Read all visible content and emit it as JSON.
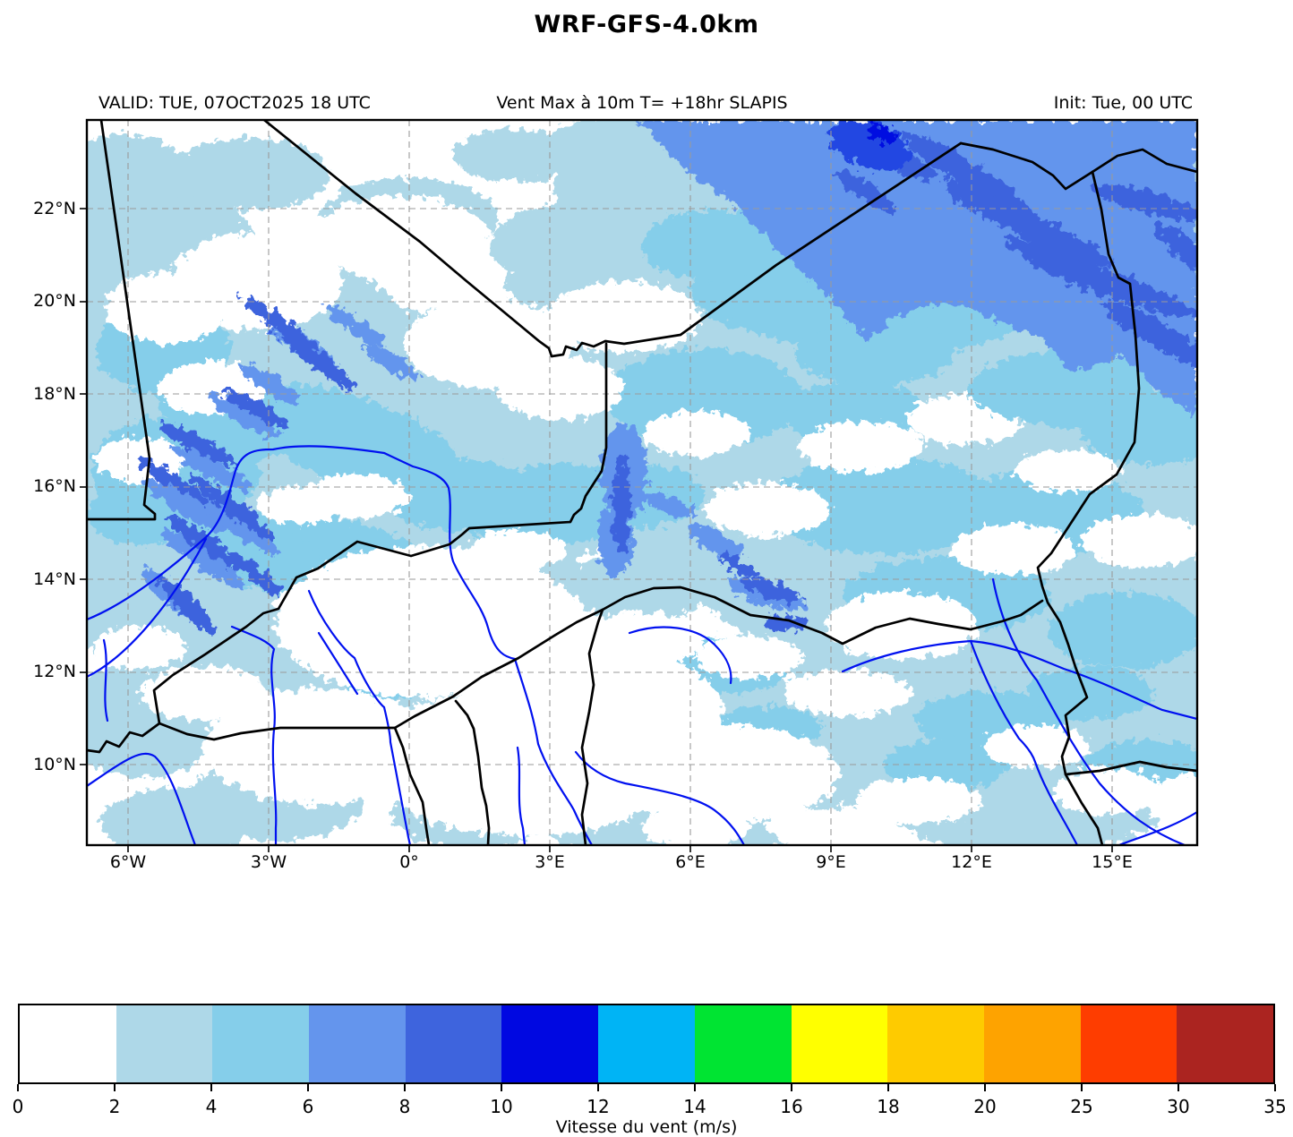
{
  "title": "WRF-GFS-4.0km",
  "header": {
    "valid": "VALID: TUE, 07OCT2025 18 UTC",
    "variable": "Vent Max à 10m T= +18hr SLAPIS",
    "init": "Init: Tue, 00 UTC"
  },
  "map": {
    "lat_ticks": [
      "22°N",
      "20°N",
      "18°N",
      "16°N",
      "14°N",
      "12°N",
      "10°N"
    ],
    "lon_ticks": [
      "6°W",
      "3°W",
      "0°",
      "3°E",
      "6°E",
      "9°E",
      "12°E",
      "15°E"
    ]
  },
  "colorbar": {
    "label": "Vitesse du vent (m/s)",
    "tick_labels": [
      "0",
      "2",
      "4",
      "6",
      "8",
      "10",
      "12",
      "14",
      "16",
      "18",
      "20",
      "25",
      "30",
      "35"
    ],
    "colors": [
      "#ffffff",
      "#aed8e8",
      "#85ceea",
      "#6495ed",
      "#3e64dd",
      "#0008e1",
      "#00b4f5",
      "#00e432",
      "#ffff00",
      "#fecb00",
      "#fea300",
      "#fe3d00",
      "#ab2420"
    ]
  },
  "chart_data": {
    "type": "heatmap",
    "title": "WRF-GFS-4.0km",
    "variable": "Vent Max à 10m (maximum 10 m wind speed)",
    "units": "m/s",
    "valid_time": "TUE, 07OCT2025 18 UTC",
    "init_time": "Tue, 00 UTC",
    "lead_time": "+18hr",
    "domain_label": "SLAPIS (Sahel / West Africa)",
    "lon_range_deg": [
      -7.0,
      16.9
    ],
    "lat_range_deg": [
      8.3,
      23.9
    ],
    "contour_levels_ms": [
      0,
      2,
      4,
      6,
      8,
      10,
      12,
      14,
      16,
      18,
      20,
      25,
      30,
      35
    ],
    "palette_hex": [
      "#ffffff",
      "#aed8e8",
      "#85ceea",
      "#6495ed",
      "#3e64dd",
      "#0008e1",
      "#00b4f5",
      "#00e432",
      "#ffff00",
      "#fecb00",
      "#fea300",
      "#fe3d00",
      "#ab2420"
    ],
    "legend_position": "bottom",
    "grid": "dashed graticule every 3° lon / 2° lat",
    "overlays": [
      "country borders (black)",
      "rivers (blue)"
    ],
    "features": [
      {
        "area": "northeast corner (S Libya / NE Niger, ~21-24N 8-17E)",
        "value_ms": "6-10, local max 10-12 near 23.5N 10.5E"
      },
      {
        "area": "NW Mali / Mauritania streaks (~16-20N 3-6W)",
        "value_ms": "6-10 in narrow diagonal bands"
      },
      {
        "area": "central N Mali / N Niger Sahara",
        "value_ms": "2-6 widespread with white gaps < 2"
      },
      {
        "area": "central Niger streak (~15-17N 3-4E)",
        "value_ms": "6-10"
      },
      {
        "area": "south (Burkina Faso, N Ghana/Benin, NW Nigeria, ~9-13N)",
        "value_ms": "mostly < 2 with patches 2-4"
      },
      {
        "area": "southeast (Lake Chad / Chad border)",
        "value_ms": "2-4 patches"
      }
    ]
  }
}
